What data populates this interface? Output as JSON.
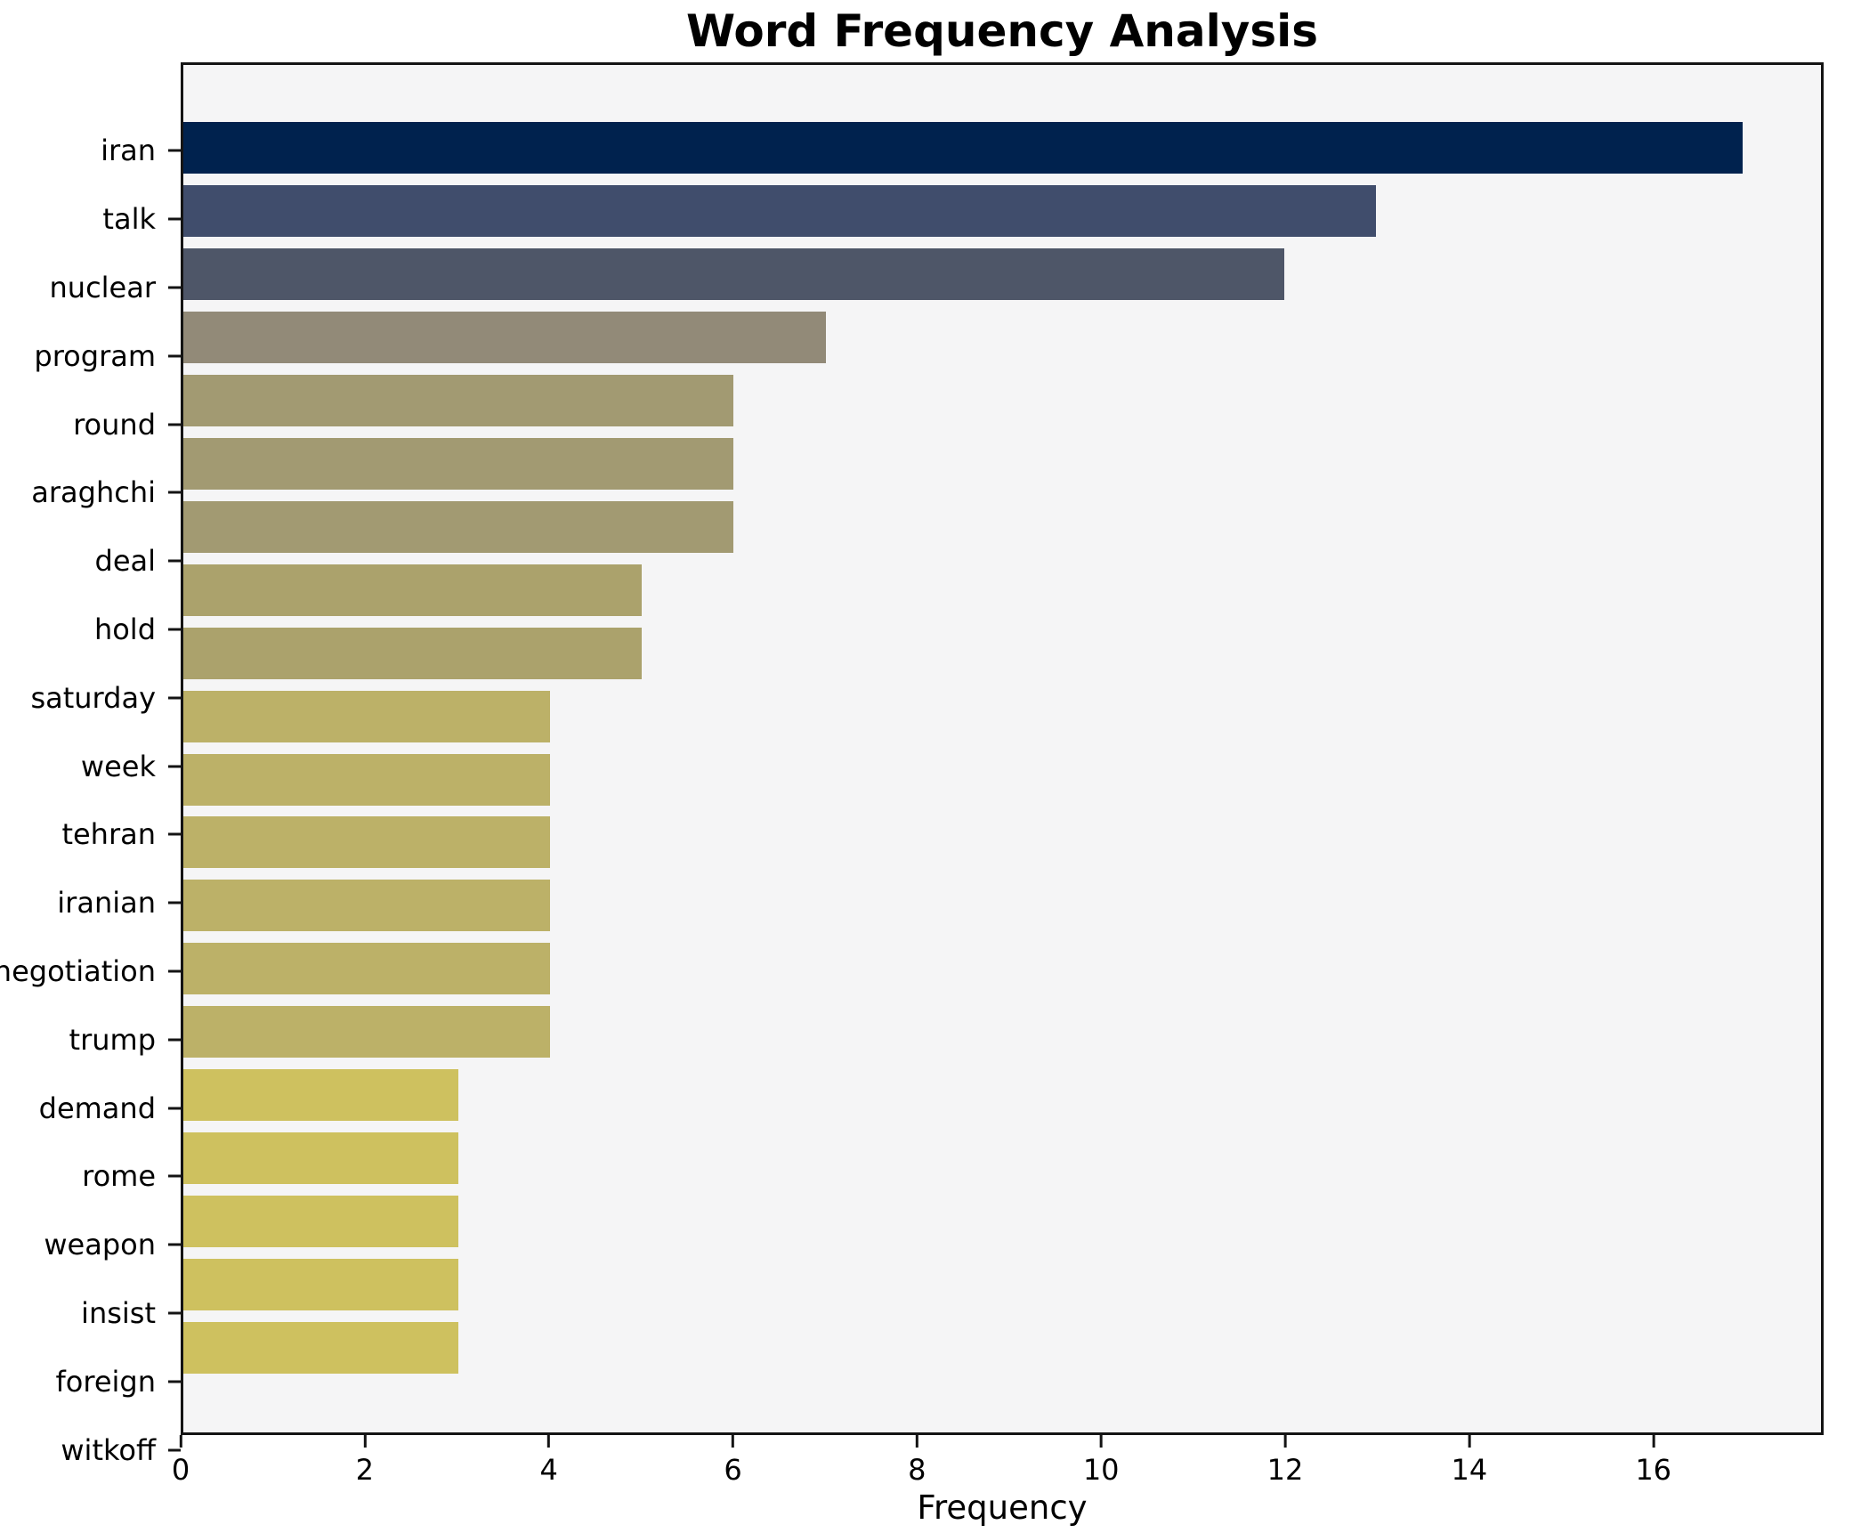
{
  "title": "Word Frequency Analysis",
  "xlabel": "Frequency",
  "background": {
    "figure": "#ffffff",
    "plot": "#f5f5f6",
    "spine": "#141414",
    "text": "#000000"
  },
  "chart_data": {
    "type": "bar",
    "orientation": "horizontal",
    "title": "Word Frequency Analysis",
    "xlabel": "Frequency",
    "ylabel": "",
    "xlim": [
      0,
      17.85
    ],
    "x_ticks": [
      0,
      2,
      4,
      6,
      8,
      10,
      12,
      14,
      16
    ],
    "grid": false,
    "legend": false,
    "categories": [
      "iran",
      "talk",
      "nuclear",
      "program",
      "round",
      "araghchi",
      "deal",
      "hold",
      "saturday",
      "week",
      "tehran",
      "iranian",
      "negotiation",
      "trump",
      "demand",
      "rome",
      "weapon",
      "insist",
      "foreign",
      "witkoff"
    ],
    "values": [
      17,
      13,
      12,
      7,
      6,
      6,
      6,
      5,
      5,
      4,
      4,
      4,
      4,
      4,
      4,
      3,
      3,
      3,
      3,
      3
    ],
    "bar_colors": [
      "#00224e",
      "#404d6c",
      "#4e5668",
      "#928a78",
      "#a29a72",
      "#a29a72",
      "#a29a72",
      "#aba26c",
      "#aba26c",
      "#bcb168",
      "#bcb168",
      "#bcb168",
      "#bcb168",
      "#bcb168",
      "#bcb168",
      "#cec15f",
      "#cec15f",
      "#cec15f",
      "#cec15f",
      "#cec15f"
    ],
    "colormap": "cividis (reversed by frequency)"
  }
}
